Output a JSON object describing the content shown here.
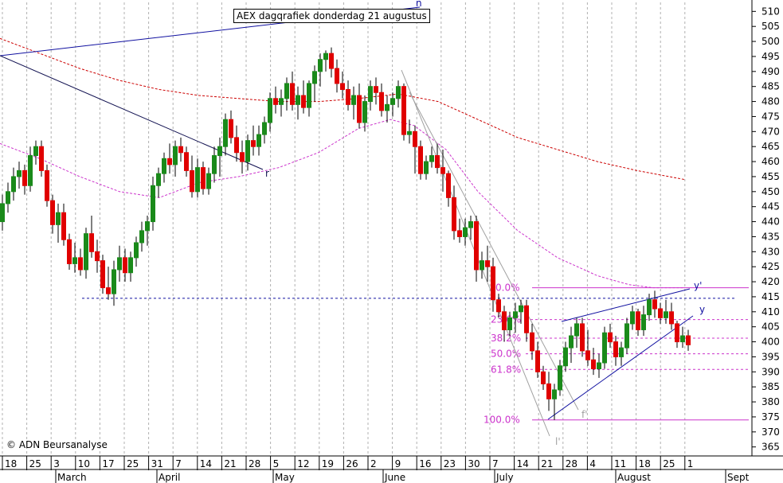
{
  "title": "AEX dagqrafiek donderdag 21 augustus",
  "copyright": "© ADN Beursanalyse",
  "colors": {
    "up": "#1a8a1a",
    "down": "#e00000",
    "ma_short": "#cc33cc",
    "ma_long": "#cc0000",
    "fib": "#cc33cc",
    "trend_blue": "#1010a0",
    "channel_gray": "#a0a0a0",
    "grid": "#b0b0b0"
  },
  "chart_data": {
    "type": "candlestick",
    "ylim": [
      362,
      513
    ],
    "y_ticks": [
      365,
      370,
      375,
      380,
      385,
      390,
      395,
      400,
      405,
      410,
      415,
      420,
      425,
      430,
      435,
      440,
      445,
      450,
      455,
      460,
      465,
      470,
      475,
      480,
      485,
      490,
      495,
      500,
      505,
      510
    ],
    "x_day_labels": [
      "18",
      "25",
      "3",
      "10",
      "17",
      "25",
      "31",
      "7",
      "14",
      "21",
      "28",
      "5",
      "12",
      "19",
      "26",
      "2",
      "9",
      "16",
      "23",
      "30",
      "7",
      "14",
      "21",
      "28",
      "4",
      "11",
      "18",
      "25",
      "1"
    ],
    "month_labels": [
      "March",
      "April",
      "May",
      "June",
      "July",
      "August",
      "Sept"
    ],
    "fibonacci": [
      {
        "label": "0.0%",
        "value": 418
      },
      {
        "label": "23.6%",
        "value": 407.4
      },
      {
        "label": "38.2%",
        "value": 401.2
      },
      {
        "label": "50.0%",
        "value": 396
      },
      {
        "label": "61.8%",
        "value": 390.8
      },
      {
        "label": "100.0%",
        "value": 374
      }
    ],
    "horizontal_reference": 414.5,
    "trendline_labels": [
      "n",
      "r",
      "y'",
      "y",
      "f'",
      "l'"
    ],
    "moving_average_long": [
      [
        0,
        501
      ],
      [
        50,
        496
      ],
      [
        100,
        491
      ],
      [
        150,
        487
      ],
      [
        200,
        484
      ],
      [
        250,
        482
      ],
      [
        300,
        481
      ],
      [
        350,
        480
      ],
      [
        400,
        480
      ],
      [
        450,
        481
      ],
      [
        500,
        482.5
      ],
      [
        550,
        480
      ],
      [
        600,
        474
      ],
      [
        650,
        468
      ],
      [
        700,
        464
      ],
      [
        750,
        460
      ],
      [
        800,
        457
      ],
      [
        860,
        454
      ]
    ],
    "moving_average_short": [
      [
        0,
        466
      ],
      [
        50,
        461
      ],
      [
        100,
        455
      ],
      [
        150,
        450
      ],
      [
        200,
        448
      ],
      [
        250,
        453
      ],
      [
        300,
        455
      ],
      [
        350,
        458
      ],
      [
        400,
        463
      ],
      [
        450,
        471
      ],
      [
        490,
        474
      ],
      [
        520,
        472
      ],
      [
        560,
        464
      ],
      [
        600,
        450
      ],
      [
        650,
        437
      ],
      [
        700,
        428
      ],
      [
        750,
        422
      ],
      [
        790,
        419
      ],
      [
        820,
        418
      ],
      [
        860,
        418
      ]
    ],
    "ohlc": [
      [
        3,
        440,
        449,
        437,
        446
      ],
      [
        10,
        446,
        453,
        443,
        450
      ],
      [
        17,
        450,
        458,
        447,
        455
      ],
      [
        24,
        455,
        460,
        451,
        457
      ],
      [
        31,
        457,
        459,
        449,
        452
      ],
      [
        38,
        452,
        465,
        450,
        462
      ],
      [
        45,
        462,
        467,
        459,
        465
      ],
      [
        52,
        465,
        467,
        455,
        457
      ],
      [
        59,
        457,
        459,
        445,
        447
      ],
      [
        66,
        447,
        449,
        436,
        439
      ],
      [
        73,
        439,
        446,
        433,
        443
      ],
      [
        80,
        443,
        446,
        432,
        434
      ],
      [
        87,
        434,
        436,
        424,
        426
      ],
      [
        94,
        426,
        433,
        423,
        428
      ],
      [
        101,
        428,
        431,
        422,
        424
      ],
      [
        108,
        424,
        438,
        421,
        436
      ],
      [
        115,
        436,
        442,
        428,
        430
      ],
      [
        122,
        430,
        434,
        423,
        427
      ],
      [
        129,
        427,
        429,
        416,
        418
      ],
      [
        136,
        418,
        425,
        414,
        416
      ],
      [
        143,
        416,
        427,
        412,
        424
      ],
      [
        150,
        424,
        432,
        420,
        428
      ],
      [
        157,
        428,
        431,
        420,
        423
      ],
      [
        164,
        423,
        430,
        420,
        428
      ],
      [
        171,
        428,
        435,
        425,
        433
      ],
      [
        178,
        433,
        440,
        430,
        437
      ],
      [
        185,
        437,
        442,
        432,
        440
      ],
      [
        192,
        440,
        455,
        437,
        452
      ],
      [
        199,
        452,
        458,
        448,
        456
      ],
      [
        206,
        456,
        463,
        453,
        461
      ],
      [
        213,
        461,
        466,
        456,
        459
      ],
      [
        220,
        459,
        467,
        455,
        465
      ],
      [
        227,
        465,
        468,
        460,
        463
      ],
      [
        234,
        463,
        465,
        455,
        457
      ],
      [
        241,
        457,
        462,
        448,
        450
      ],
      [
        248,
        450,
        461,
        448,
        458
      ],
      [
        255,
        458,
        460,
        449,
        451
      ],
      [
        262,
        451,
        458,
        449,
        456
      ],
      [
        269,
        456,
        465,
        453,
        462
      ],
      [
        276,
        462,
        468,
        455,
        465
      ],
      [
        283,
        465,
        476,
        462,
        474
      ],
      [
        290,
        474,
        477,
        466,
        468
      ],
      [
        297,
        468,
        472,
        460,
        463
      ],
      [
        304,
        463,
        467,
        456,
        460
      ],
      [
        311,
        460,
        469,
        457,
        467
      ],
      [
        318,
        467,
        472,
        462,
        465
      ],
      [
        325,
        465,
        472,
        462,
        469
      ],
      [
        332,
        469,
        475,
        466,
        473
      ],
      [
        339,
        473,
        483,
        470,
        481
      ],
      [
        346,
        481,
        485,
        476,
        479
      ],
      [
        353,
        479,
        484,
        475,
        481
      ],
      [
        360,
        481,
        488,
        477,
        486
      ],
      [
        367,
        486,
        490,
        477,
        479
      ],
      [
        374,
        479,
        485,
        474,
        482
      ],
      [
        381,
        482,
        487,
        476,
        478
      ],
      [
        388,
        478,
        487,
        475,
        486
      ],
      [
        395,
        486,
        492,
        480,
        490
      ],
      [
        402,
        490,
        496,
        485,
        494
      ],
      [
        409,
        494,
        497,
        490,
        496
      ],
      [
        416,
        496,
        498,
        488,
        491
      ],
      [
        423,
        491,
        494,
        483,
        486
      ],
      [
        430,
        486,
        490,
        481,
        484
      ],
      [
        437,
        484,
        487,
        477,
        479
      ],
      [
        444,
        479,
        485,
        474,
        482
      ],
      [
        451,
        482,
        486,
        471,
        473
      ],
      [
        458,
        473,
        482,
        470,
        480
      ],
      [
        465,
        480,
        487,
        477,
        485
      ],
      [
        472,
        485,
        488,
        479,
        483
      ],
      [
        479,
        483,
        486,
        475,
        477
      ],
      [
        486,
        477,
        482,
        473,
        479
      ],
      [
        493,
        479,
        483,
        475,
        481
      ],
      [
        500,
        481,
        487,
        478,
        485
      ],
      [
        507,
        485,
        486,
        467,
        469
      ],
      [
        514,
        469,
        474,
        466,
        470
      ],
      [
        521,
        470,
        472,
        456,
        465
      ],
      [
        528,
        465,
        467,
        454,
        456
      ],
      [
        535,
        456,
        462,
        454,
        460
      ],
      [
        542,
        460,
        465,
        458,
        462
      ],
      [
        549,
        462,
        466,
        456,
        458
      ],
      [
        556,
        458,
        464,
        450,
        456
      ],
      [
        563,
        456,
        457,
        445,
        448
      ],
      [
        570,
        448,
        452,
        434,
        437
      ],
      [
        577,
        437,
        441,
        433,
        435
      ],
      [
        584,
        435,
        441,
        432,
        438
      ],
      [
        591,
        438,
        442,
        434,
        440
      ],
      [
        598,
        440,
        442,
        420,
        424
      ],
      [
        605,
        424,
        430,
        421,
        427
      ],
      [
        612,
        427,
        432,
        420,
        425
      ],
      [
        619,
        425,
        428,
        410,
        414
      ],
      [
        626,
        414,
        416,
        408,
        410
      ],
      [
        633,
        410,
        412,
        400,
        404
      ],
      [
        640,
        404,
        410,
        402,
        408
      ],
      [
        647,
        408,
        413,
        403,
        410
      ],
      [
        654,
        410,
        414,
        406,
        412
      ],
      [
        661,
        412,
        414,
        400,
        403
      ],
      [
        668,
        403,
        406,
        394,
        397
      ],
      [
        675,
        397,
        400,
        388,
        390
      ],
      [
        682,
        390,
        392,
        384,
        386
      ],
      [
        689,
        386,
        390,
        377,
        381
      ],
      [
        696,
        381,
        386,
        374,
        384
      ],
      [
        703,
        384,
        394,
        382,
        392
      ],
      [
        710,
        392,
        400,
        390,
        398
      ],
      [
        717,
        398,
        405,
        393,
        402
      ],
      [
        724,
        402,
        408,
        398,
        406
      ],
      [
        731,
        406,
        408,
        395,
        397
      ],
      [
        738,
        397,
        404,
        392,
        394
      ],
      [
        745,
        394,
        398,
        389,
        391
      ],
      [
        752,
        391,
        396,
        388,
        393
      ],
      [
        759,
        393,
        405,
        391,
        403
      ],
      [
        766,
        403,
        406,
        398,
        400
      ],
      [
        773,
        400,
        402,
        392,
        395
      ],
      [
        780,
        395,
        400,
        392,
        398
      ],
      [
        787,
        398,
        408,
        396,
        406
      ],
      [
        794,
        406,
        412,
        404,
        410
      ],
      [
        801,
        410,
        411,
        402,
        404
      ],
      [
        808,
        404,
        412,
        402,
        409
      ],
      [
        815,
        409,
        416,
        407,
        414
      ],
      [
        822,
        414,
        417,
        408,
        411
      ],
      [
        829,
        411,
        413,
        406,
        408
      ],
      [
        836,
        408,
        414,
        406,
        410
      ],
      [
        843,
        410,
        413,
        404,
        406
      ],
      [
        850,
        406,
        407,
        398,
        400
      ],
      [
        857,
        400,
        405,
        398,
        402
      ],
      [
        864,
        402,
        404,
        397,
        399
      ]
    ]
  }
}
